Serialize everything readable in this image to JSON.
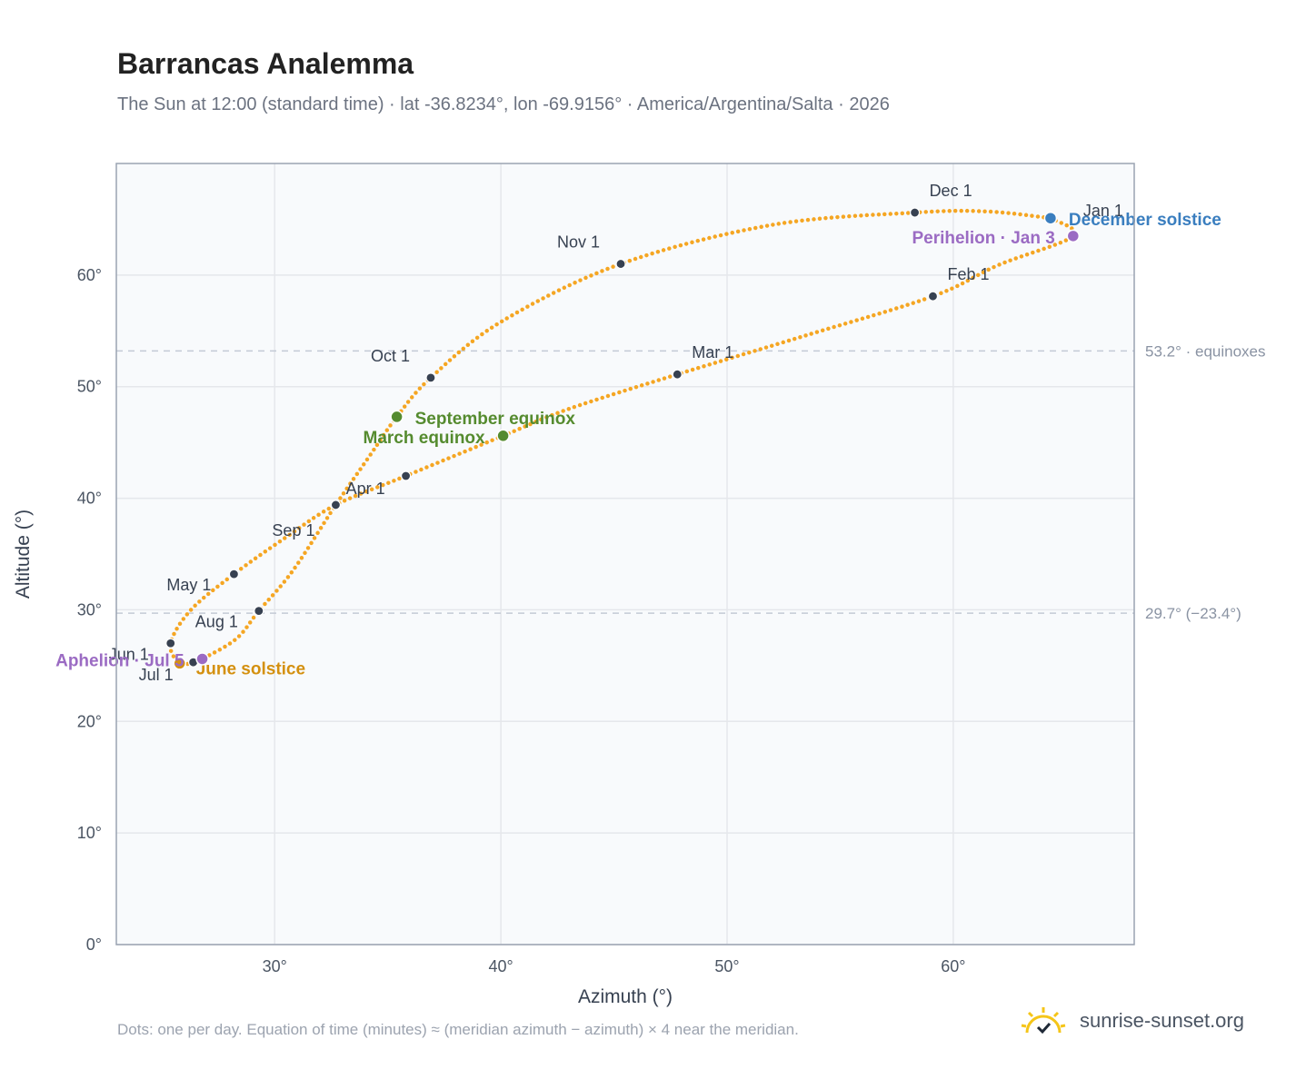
{
  "title": "Barrancas Analemma",
  "subtitle": "The Sun at 12:00 (standard time) · lat -36.8234°, lon -69.9156° · America/Argentina/Salta · 2026",
  "footnote": "Dots: one per day. Equation of time (minutes) ≈ (meridian azimuth − azimuth) × 4 near the meridian.",
  "brand": {
    "text": "sunrise-sunset.org",
    "icon": "sunrise-logo-icon"
  },
  "colors": {
    "path": "#f5a623",
    "month": "#374151",
    "equinox": "#558b2f",
    "december": "#3a7ebf",
    "june": "#d4900f",
    "apsis": "#9b6bc3",
    "grid": "#e5e7eb",
    "guide": "#c3cad5",
    "plot_bg": "#f8fafc",
    "frame": "#9aa3b2"
  },
  "chart_data": {
    "type": "scatter",
    "xlabel": "Azimuth (°)",
    "ylabel": "Altitude (°)",
    "xlim": [
      23,
      68
    ],
    "ylim": [
      0,
      70
    ],
    "x_ticks": [
      30,
      40,
      50,
      60
    ],
    "x_tick_labels": [
      "30°",
      "40°",
      "50°",
      "60°"
    ],
    "y_ticks": [
      0,
      10,
      20,
      30,
      40,
      50,
      60
    ],
    "y_tick_labels": [
      "0°",
      "10°",
      "20°",
      "30°",
      "40°",
      "50°",
      "60°"
    ],
    "grid": true,
    "reference_lines": [
      {
        "y": 53.2,
        "label": "53.2° · equinoxes"
      },
      {
        "y": 29.7,
        "label": "29.7° (−23.4°)"
      }
    ],
    "path": [
      {
        "az": 64.3,
        "alt": 65.1
      },
      {
        "az": 65.3,
        "alt": 63.5
      },
      {
        "az": 62.0,
        "alt": 60.9
      },
      {
        "az": 59.1,
        "alt": 58.1
      },
      {
        "az": 53.5,
        "alt": 54.6
      },
      {
        "az": 47.8,
        "alt": 51.1
      },
      {
        "az": 43.0,
        "alt": 48.0
      },
      {
        "az": 40.1,
        "alt": 45.6
      },
      {
        "az": 35.8,
        "alt": 42.0
      },
      {
        "az": 32.7,
        "alt": 39.4
      },
      {
        "az": 30.5,
        "alt": 36.5
      },
      {
        "az": 28.2,
        "alt": 33.2
      },
      {
        "az": 26.3,
        "alt": 30.0
      },
      {
        "az": 25.4,
        "alt": 27.0
      },
      {
        "az": 25.8,
        "alt": 25.2
      },
      {
        "az": 26.4,
        "alt": 25.3
      },
      {
        "az": 26.8,
        "alt": 25.6
      },
      {
        "az": 28.3,
        "alt": 27.4
      },
      {
        "az": 29.3,
        "alt": 29.9
      },
      {
        "az": 30.8,
        "alt": 33.5
      },
      {
        "az": 32.7,
        "alt": 39.4
      },
      {
        "az": 34.2,
        "alt": 43.8
      },
      {
        "az": 35.4,
        "alt": 47.3
      },
      {
        "az": 36.9,
        "alt": 50.8
      },
      {
        "az": 40.0,
        "alt": 55.8
      },
      {
        "az": 45.3,
        "alt": 61.0
      },
      {
        "az": 52.0,
        "alt": 64.5
      },
      {
        "az": 58.3,
        "alt": 65.6
      },
      {
        "az": 61.5,
        "alt": 65.7
      },
      {
        "az": 64.3,
        "alt": 65.1
      }
    ],
    "months": [
      {
        "label": "Jan 1",
        "az": 64.3,
        "alt": 65.1,
        "dx": 36,
        "dy": -2
      },
      {
        "label": "Feb 1",
        "az": 59.1,
        "alt": 58.1,
        "dx": 16,
        "dy": -18
      },
      {
        "label": "Mar 1",
        "az": 47.8,
        "alt": 51.1,
        "dx": 16,
        "dy": -18
      },
      {
        "label": "Apr 1",
        "az": 35.8,
        "alt": 42.0,
        "dx": -66,
        "dy": 20
      },
      {
        "label": "May 1",
        "az": 28.2,
        "alt": 33.2,
        "dx": -74,
        "dy": 18
      },
      {
        "label": "Jun 1",
        "az": 25.4,
        "alt": 27.0,
        "dx": -68,
        "dy": 18
      },
      {
        "label": "Jul 1",
        "az": 26.4,
        "alt": 25.3,
        "dx": -60,
        "dy": 20
      },
      {
        "label": "Aug 1",
        "az": 29.3,
        "alt": 29.9,
        "dx": -70,
        "dy": 18
      },
      {
        "label": "Sep 1",
        "az": 32.7,
        "alt": 39.4,
        "dx": -70,
        "dy": 34
      },
      {
        "label": "Oct 1",
        "az": 36.9,
        "alt": 50.8,
        "dx": -66,
        "dy": -18
      },
      {
        "label": "Nov 1",
        "az": 45.3,
        "alt": 61.0,
        "dx": -70,
        "dy": -18
      },
      {
        "label": "Dec 1",
        "az": 58.3,
        "alt": 65.6,
        "dx": 16,
        "dy": -18
      }
    ],
    "events": [
      {
        "label": "December solstice",
        "az": 64.3,
        "alt": 65.1,
        "kind": "december",
        "anchor": "start",
        "dx": 20,
        "dy": 8
      },
      {
        "label": "Perihelion · Jan 3",
        "az": 65.3,
        "alt": 63.5,
        "kind": "apsis",
        "anchor": "end",
        "dx": -20,
        "dy": 8
      },
      {
        "label": "March equinox",
        "az": 40.1,
        "alt": 45.6,
        "kind": "equinox",
        "anchor": "end",
        "dx": -20,
        "dy": 8
      },
      {
        "label": "September equinox",
        "az": 35.4,
        "alt": 47.3,
        "kind": "equinox",
        "anchor": "start",
        "dx": 20,
        "dy": 8
      },
      {
        "label": "June solstice",
        "az": 25.8,
        "alt": 25.2,
        "kind": "june",
        "anchor": "start",
        "dx": 18,
        "dy": 12
      },
      {
        "label": "Aphelion · Jul 5",
        "az": 26.8,
        "alt": 25.6,
        "kind": "apsis",
        "anchor": "end",
        "dx": -20,
        "dy": 8
      }
    ]
  }
}
